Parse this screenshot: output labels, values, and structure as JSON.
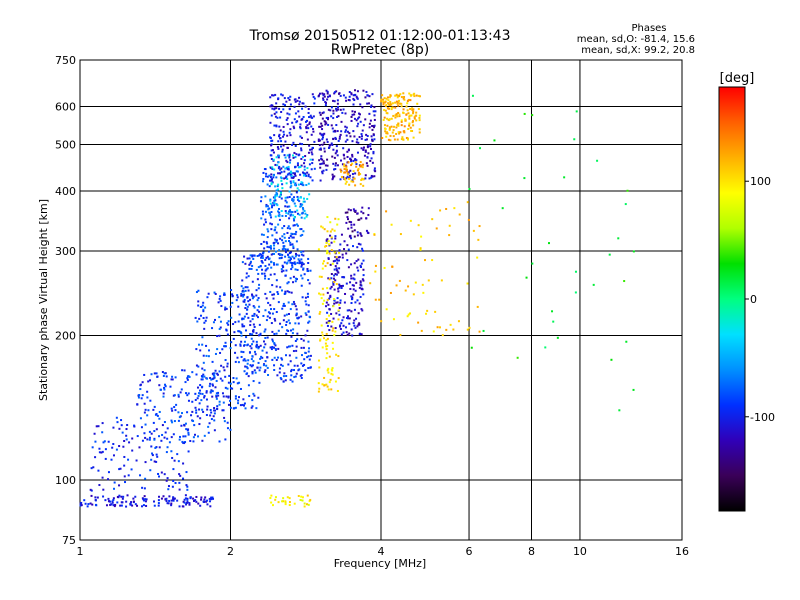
{
  "chart_data": {
    "type": "scatter",
    "title": "Tromsø 20150512 01:12:00-01:13:43",
    "subtitle": "RwPretec (8p)",
    "xlabel": "Frequency [MHz]",
    "ylabel": "Stationary phase Virtual Height [km]",
    "x_scale": "log",
    "y_scale": "log",
    "xlim": [
      1,
      16
    ],
    "ylim": [
      75,
      750
    ],
    "x_ticks": [
      1,
      2,
      4,
      6,
      8,
      10,
      16
    ],
    "y_ticks": [
      75,
      100,
      200,
      300,
      400,
      500,
      600,
      750
    ],
    "grid": true,
    "phases": {
      "title": "Phases",
      "o_line": "mean, sd,O: -81.4, 15.6",
      "x_line": "mean, sd,X:  99.2, 20.8"
    },
    "colorbar": {
      "label": "[deg]",
      "range": [
        -180,
        180
      ],
      "ticks": [
        100,
        0,
        -100
      ],
      "colors": [
        "#000000",
        "#3a0058",
        "#3000b8",
        "#0030ff",
        "#0090ff",
        "#00e0ff",
        "#00ff80",
        "#00e000",
        "#b0ff00",
        "#ffff00",
        "#ffb000",
        "#ff6000",
        "#ff0000"
      ]
    },
    "clusters": [
      {
        "name": "E-layer trace",
        "x_range": [
          1.0,
          1.85
        ],
        "y_range": [
          88,
          93
        ],
        "phase": -105,
        "count": 140
      },
      {
        "name": "Es patch",
        "x_range": [
          2.4,
          2.9
        ],
        "y_range": [
          88,
          93
        ],
        "phase": 95,
        "count": 30
      },
      {
        "name": "F1 lower slope",
        "x_range": [
          1.05,
          1.7
        ],
        "y_range": [
          95,
          135
        ],
        "phase": -95,
        "count": 140
      },
      {
        "name": "F1 ramp",
        "x_range": [
          1.3,
          2.0
        ],
        "y_range": [
          120,
          170
        ],
        "phase": -90,
        "count": 180
      },
      {
        "name": "F1 cusp",
        "x_range": [
          1.7,
          2.3
        ],
        "y_range": [
          140,
          250
        ],
        "phase": -88,
        "count": 260
      },
      {
        "name": "F2 base",
        "x_range": [
          2.1,
          2.9
        ],
        "y_range": [
          160,
          300
        ],
        "phase": -90,
        "count": 380
      },
      {
        "name": "F2 mid",
        "x_range": [
          2.3,
          2.8
        ],
        "y_range": [
          280,
          450
        ],
        "phase": -82,
        "count": 260
      },
      {
        "name": "F2 upper O",
        "x_range": [
          2.4,
          2.95
        ],
        "y_range": [
          420,
          640
        ],
        "phase": -105,
        "count": 220
      },
      {
        "name": "F2 cyan region",
        "x_range": [
          2.4,
          2.9
        ],
        "y_range": [
          350,
          480
        ],
        "phase": -40,
        "count": 80
      },
      {
        "name": "F2 high",
        "x_range": [
          3.0,
          3.9
        ],
        "y_range": [
          420,
          650
        ],
        "phase": -115,
        "count": 320
      },
      {
        "name": "F2 mid-high",
        "x_range": [
          3.1,
          3.7
        ],
        "y_range": [
          200,
          330
        ],
        "phase": -110,
        "count": 200
      },
      {
        "name": "F2 dark patch",
        "x_range": [
          3.4,
          3.8
        ],
        "y_range": [
          320,
          370
        ],
        "phase": -130,
        "count": 40
      },
      {
        "name": "X trace",
        "x_range": [
          3.0,
          3.3
        ],
        "y_range": [
          150,
          360
        ],
        "phase": 100,
        "count": 110
      },
      {
        "name": "X high",
        "x_range": [
          4.0,
          4.8
        ],
        "y_range": [
          510,
          640
        ],
        "phase": 115,
        "count": 180
      },
      {
        "name": "X orange patch",
        "x_range": [
          3.3,
          3.7
        ],
        "y_range": [
          410,
          460
        ],
        "phase": 120,
        "count": 50
      },
      {
        "name": "Scattered echoes",
        "x_range": [
          3.8,
          6.3
        ],
        "y_range": [
          200,
          380
        ],
        "phase": 110,
        "count": 70
      },
      {
        "name": "Sparse high-frequency echoes",
        "x_range": [
          6.0,
          13.0
        ],
        "y_range": [
          110,
          650
        ],
        "phase": 20,
        "count": 35
      }
    ]
  }
}
